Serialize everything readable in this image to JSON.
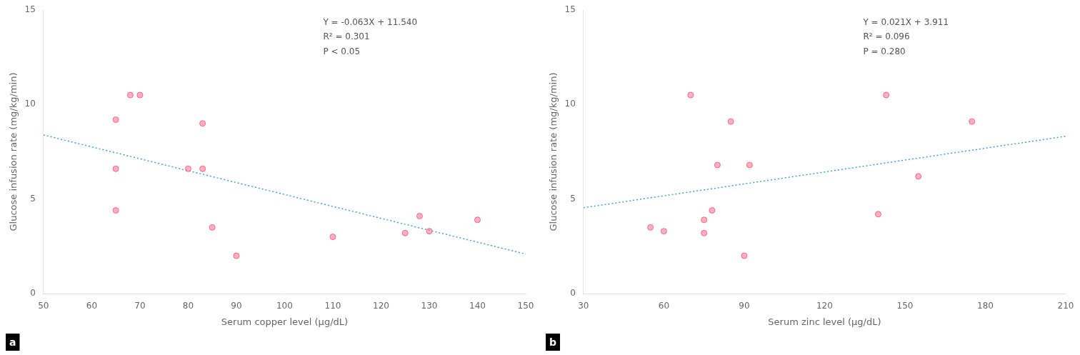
{
  "chart_data": [
    {
      "type": "scatter",
      "panel_label": "a",
      "xlabel": "Serum copper level (μg/dL)",
      "ylabel": "Glucose infusion rate (mg/kg/min)",
      "annotations": [
        "Y = -0.063X + 11.540",
        "R² = 0.301",
        "P < 0.05"
      ],
      "series": [
        {
          "type": "line",
          "line_style": "dotted",
          "x": [
            50,
            150
          ],
          "values": [
            8.39,
            2.09
          ]
        },
        {
          "type": "scatter",
          "marker": "circle",
          "x": [
            65,
            68,
            70,
            80,
            83,
            83,
            85,
            90,
            110,
            125,
            128,
            130,
            140,
            65,
            65
          ],
          "values": [
            9.2,
            10.5,
            10.5,
            6.6,
            6.6,
            9.0,
            3.5,
            2.0,
            3.0,
            3.2,
            4.1,
            3.3,
            3.9,
            6.6,
            4.4
          ]
        }
      ],
      "xlim": [
        50,
        150
      ],
      "xticks": [
        50,
        60,
        70,
        80,
        90,
        100,
        110,
        120,
        130,
        140,
        150
      ],
      "ylim": [
        0,
        15
      ],
      "yticks": [
        0,
        5,
        10,
        15
      ],
      "grid": false
    },
    {
      "type": "scatter",
      "panel_label": "b",
      "xlabel": "Serum zinc level (μg/dL)",
      "ylabel": "Glucose infusion rate (mg/kg/min)",
      "annotations": [
        "Y = 0.021X + 3.911",
        "R² = 0.096",
        "P = 0.280"
      ],
      "series": [
        {
          "type": "line",
          "line_style": "dotted",
          "x": [
            30,
            210
          ],
          "values": [
            4.541,
            8.321
          ]
        },
        {
          "type": "scatter",
          "marker": "circle",
          "x": [
            55,
            60,
            70,
            75,
            78,
            80,
            85,
            90,
            92,
            140,
            143,
            155,
            175,
            75
          ],
          "values": [
            3.5,
            3.3,
            10.5,
            3.2,
            4.4,
            6.8,
            9.1,
            2.0,
            6.8,
            4.2,
            10.5,
            6.2,
            9.1,
            3.9
          ]
        }
      ],
      "xlim": [
        30,
        210
      ],
      "xticks": [
        30,
        60,
        90,
        120,
        150,
        180,
        210
      ],
      "ylim": [
        0,
        15
      ],
      "yticks": [
        0,
        5,
        10,
        15
      ],
      "grid": false
    }
  ]
}
